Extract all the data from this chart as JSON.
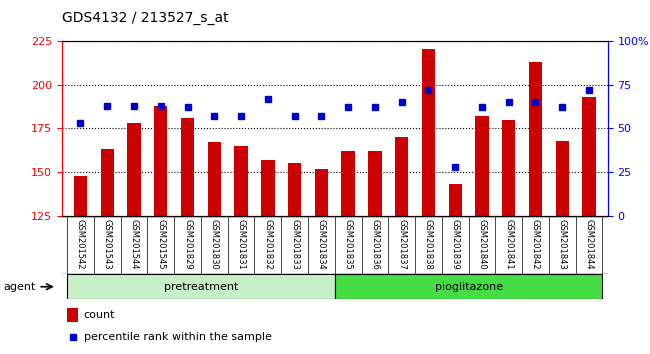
{
  "title": "GDS4132 / 213527_s_at",
  "samples": [
    "GSM201542",
    "GSM201543",
    "GSM201544",
    "GSM201545",
    "GSM201829",
    "GSM201830",
    "GSM201831",
    "GSM201832",
    "GSM201833",
    "GSM201834",
    "GSM201835",
    "GSM201836",
    "GSM201837",
    "GSM201838",
    "GSM201839",
    "GSM201840",
    "GSM201841",
    "GSM201842",
    "GSM201843",
    "GSM201844"
  ],
  "counts": [
    148,
    163,
    178,
    188,
    181,
    167,
    165,
    157,
    155,
    152,
    162,
    162,
    170,
    220,
    143,
    182,
    180,
    213,
    168,
    193
  ],
  "percentiles": [
    53,
    63,
    63,
    63,
    62,
    57,
    57,
    67,
    57,
    57,
    62,
    62,
    65,
    72,
    28,
    62,
    65,
    65,
    62,
    72
  ],
  "n_pretreatment": 10,
  "n_pioglitazone": 10,
  "ylim_left": [
    125,
    225
  ],
  "ylim_right": [
    0,
    100
  ],
  "bar_color": "#cc0000",
  "dot_color": "#0000cc",
  "bar_width": 0.5,
  "pretreatment_color": "#c8f0c8",
  "pioglitazone_color": "#44dd44",
  "background_color": "#cccccc",
  "legend_count_color": "#cc0000",
  "legend_dot_color": "#0000cc",
  "title_fontsize": 10,
  "label_fontsize": 6,
  "agent_fontsize": 8,
  "legend_fontsize": 8
}
